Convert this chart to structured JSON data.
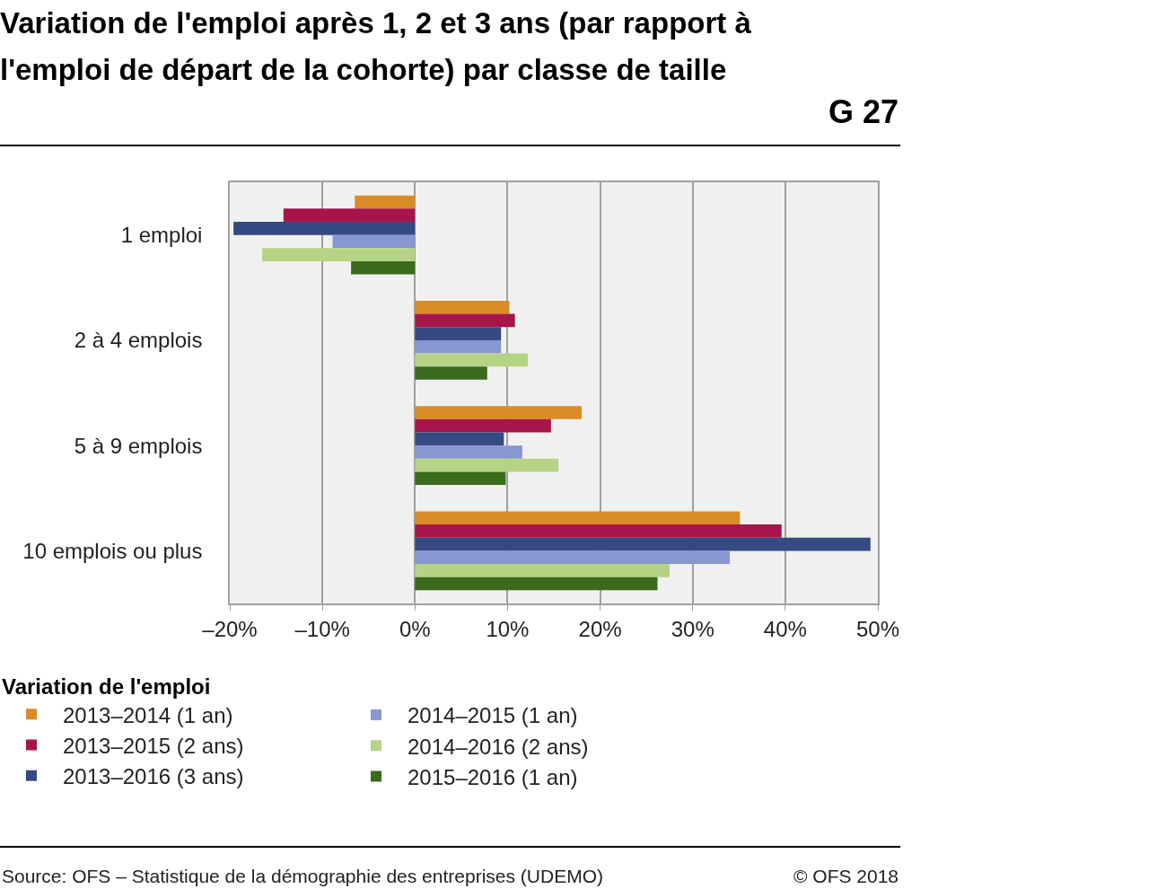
{
  "chart_data": {
    "type": "bar",
    "orientation": "horizontal",
    "title": "Variation de l'emploi après 1, 2 et 3 ans (par rapport à l'emploi de départ de la cohorte) par classe de taille",
    "categories": [
      "1 emploi",
      "2 à 4 emplois",
      "5 à 9 emplois",
      "10 emplois ou plus"
    ],
    "series": [
      {
        "name": "2013–2014 (1 an)",
        "color": "#d98b26",
        "values": [
          -6.5,
          10.2,
          18.0,
          35.1
        ]
      },
      {
        "name": "2013–2015 (2 ans)",
        "color": "#a8154a",
        "values": [
          -14.2,
          10.8,
          14.7,
          39.6
        ]
      },
      {
        "name": "2013–2016 (3 ans)",
        "color": "#364a82",
        "values": [
          -19.6,
          9.3,
          9.6,
          49.2
        ]
      },
      {
        "name": "2014–2015 (1 an)",
        "color": "#8896d1",
        "values": [
          -8.9,
          9.3,
          11.6,
          34.0
        ]
      },
      {
        "name": "2014–2016 (2 ans)",
        "color": "#b5d384",
        "values": [
          -16.5,
          12.2,
          15.5,
          27.5
        ]
      },
      {
        "name": "2015–2016 (1 an)",
        "color": "#3a6a1c",
        "values": [
          -6.9,
          7.8,
          9.8,
          26.2
        ]
      }
    ],
    "xlim": [
      -20,
      50
    ],
    "xticks": [
      {
        "value": -20,
        "label": "–20%"
      },
      {
        "value": -10,
        "label": "–10%"
      },
      {
        "value": 0,
        "label": "0%"
      },
      {
        "value": 10,
        "label": "10%"
      },
      {
        "value": 20,
        "label": "20%"
      },
      {
        "value": 30,
        "label": "30%"
      },
      {
        "value": 40,
        "label": "40%"
      },
      {
        "value": 50,
        "label": "50%"
      }
    ],
    "grid": "x",
    "legend": "bottom",
    "legend_title": "Variation de l'emploi",
    "annotations": [
      "G 27",
      "Source: OFS – Statistique de la démographie des entreprises (UDEMO)",
      "© OFS 2018"
    ]
  }
}
